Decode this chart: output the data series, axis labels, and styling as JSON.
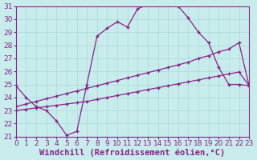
{
  "xlabel": "Windchill (Refroidissement éolien,°C)",
  "background_color": "#c8ecec",
  "line_color": "#882288",
  "grid_color": "#a8d8d8",
  "xlim": [
    0,
    23
  ],
  "ylim": [
    21,
    31
  ],
  "xticks": [
    0,
    1,
    2,
    3,
    4,
    5,
    6,
    7,
    8,
    9,
    10,
    11,
    12,
    13,
    14,
    15,
    16,
    17,
    18,
    19,
    20,
    21,
    22,
    23
  ],
  "yticks": [
    21,
    22,
    23,
    24,
    25,
    26,
    27,
    28,
    29,
    30,
    31
  ],
  "line1_x": [
    0,
    1,
    2,
    3,
    4,
    5,
    6,
    7,
    8,
    9,
    10,
    11,
    12,
    13,
    14,
    15,
    16,
    17,
    18,
    19,
    20,
    21,
    22,
    23
  ],
  "line1_y": [
    24.9,
    24.0,
    23.3,
    23.0,
    22.2,
    21.1,
    21.4,
    25.0,
    28.7,
    29.3,
    29.8,
    29.4,
    30.8,
    31.1,
    31.1,
    31.1,
    31.0,
    30.1,
    29.0,
    28.2,
    26.3,
    25.0,
    25.0,
    24.9
  ],
  "line2_x": [
    0,
    1,
    2,
    3,
    4,
    5,
    6,
    7,
    8,
    9,
    10,
    11,
    12,
    13,
    14,
    15,
    16,
    17,
    18,
    19,
    20,
    21,
    22,
    23
  ],
  "line2_y": [
    23.3,
    23.5,
    23.7,
    23.9,
    24.1,
    24.3,
    24.5,
    24.7,
    24.9,
    25.1,
    25.3,
    25.5,
    25.7,
    25.9,
    26.1,
    26.3,
    26.5,
    26.7,
    27.0,
    27.2,
    27.5,
    27.7,
    28.2,
    24.9
  ],
  "line3_x": [
    0,
    1,
    2,
    3,
    4,
    5,
    6,
    7,
    8,
    9,
    10,
    11,
    12,
    13,
    14,
    15,
    16,
    17,
    18,
    19,
    20,
    21,
    22,
    23
  ],
  "line3_y": [
    23.0,
    23.1,
    23.2,
    23.3,
    23.4,
    23.5,
    23.6,
    23.7,
    23.85,
    24.0,
    24.15,
    24.3,
    24.45,
    24.6,
    24.75,
    24.9,
    25.05,
    25.2,
    25.35,
    25.5,
    25.65,
    25.8,
    25.95,
    24.9
  ],
  "tick_fontsize": 6.5,
  "label_fontsize": 7.5
}
